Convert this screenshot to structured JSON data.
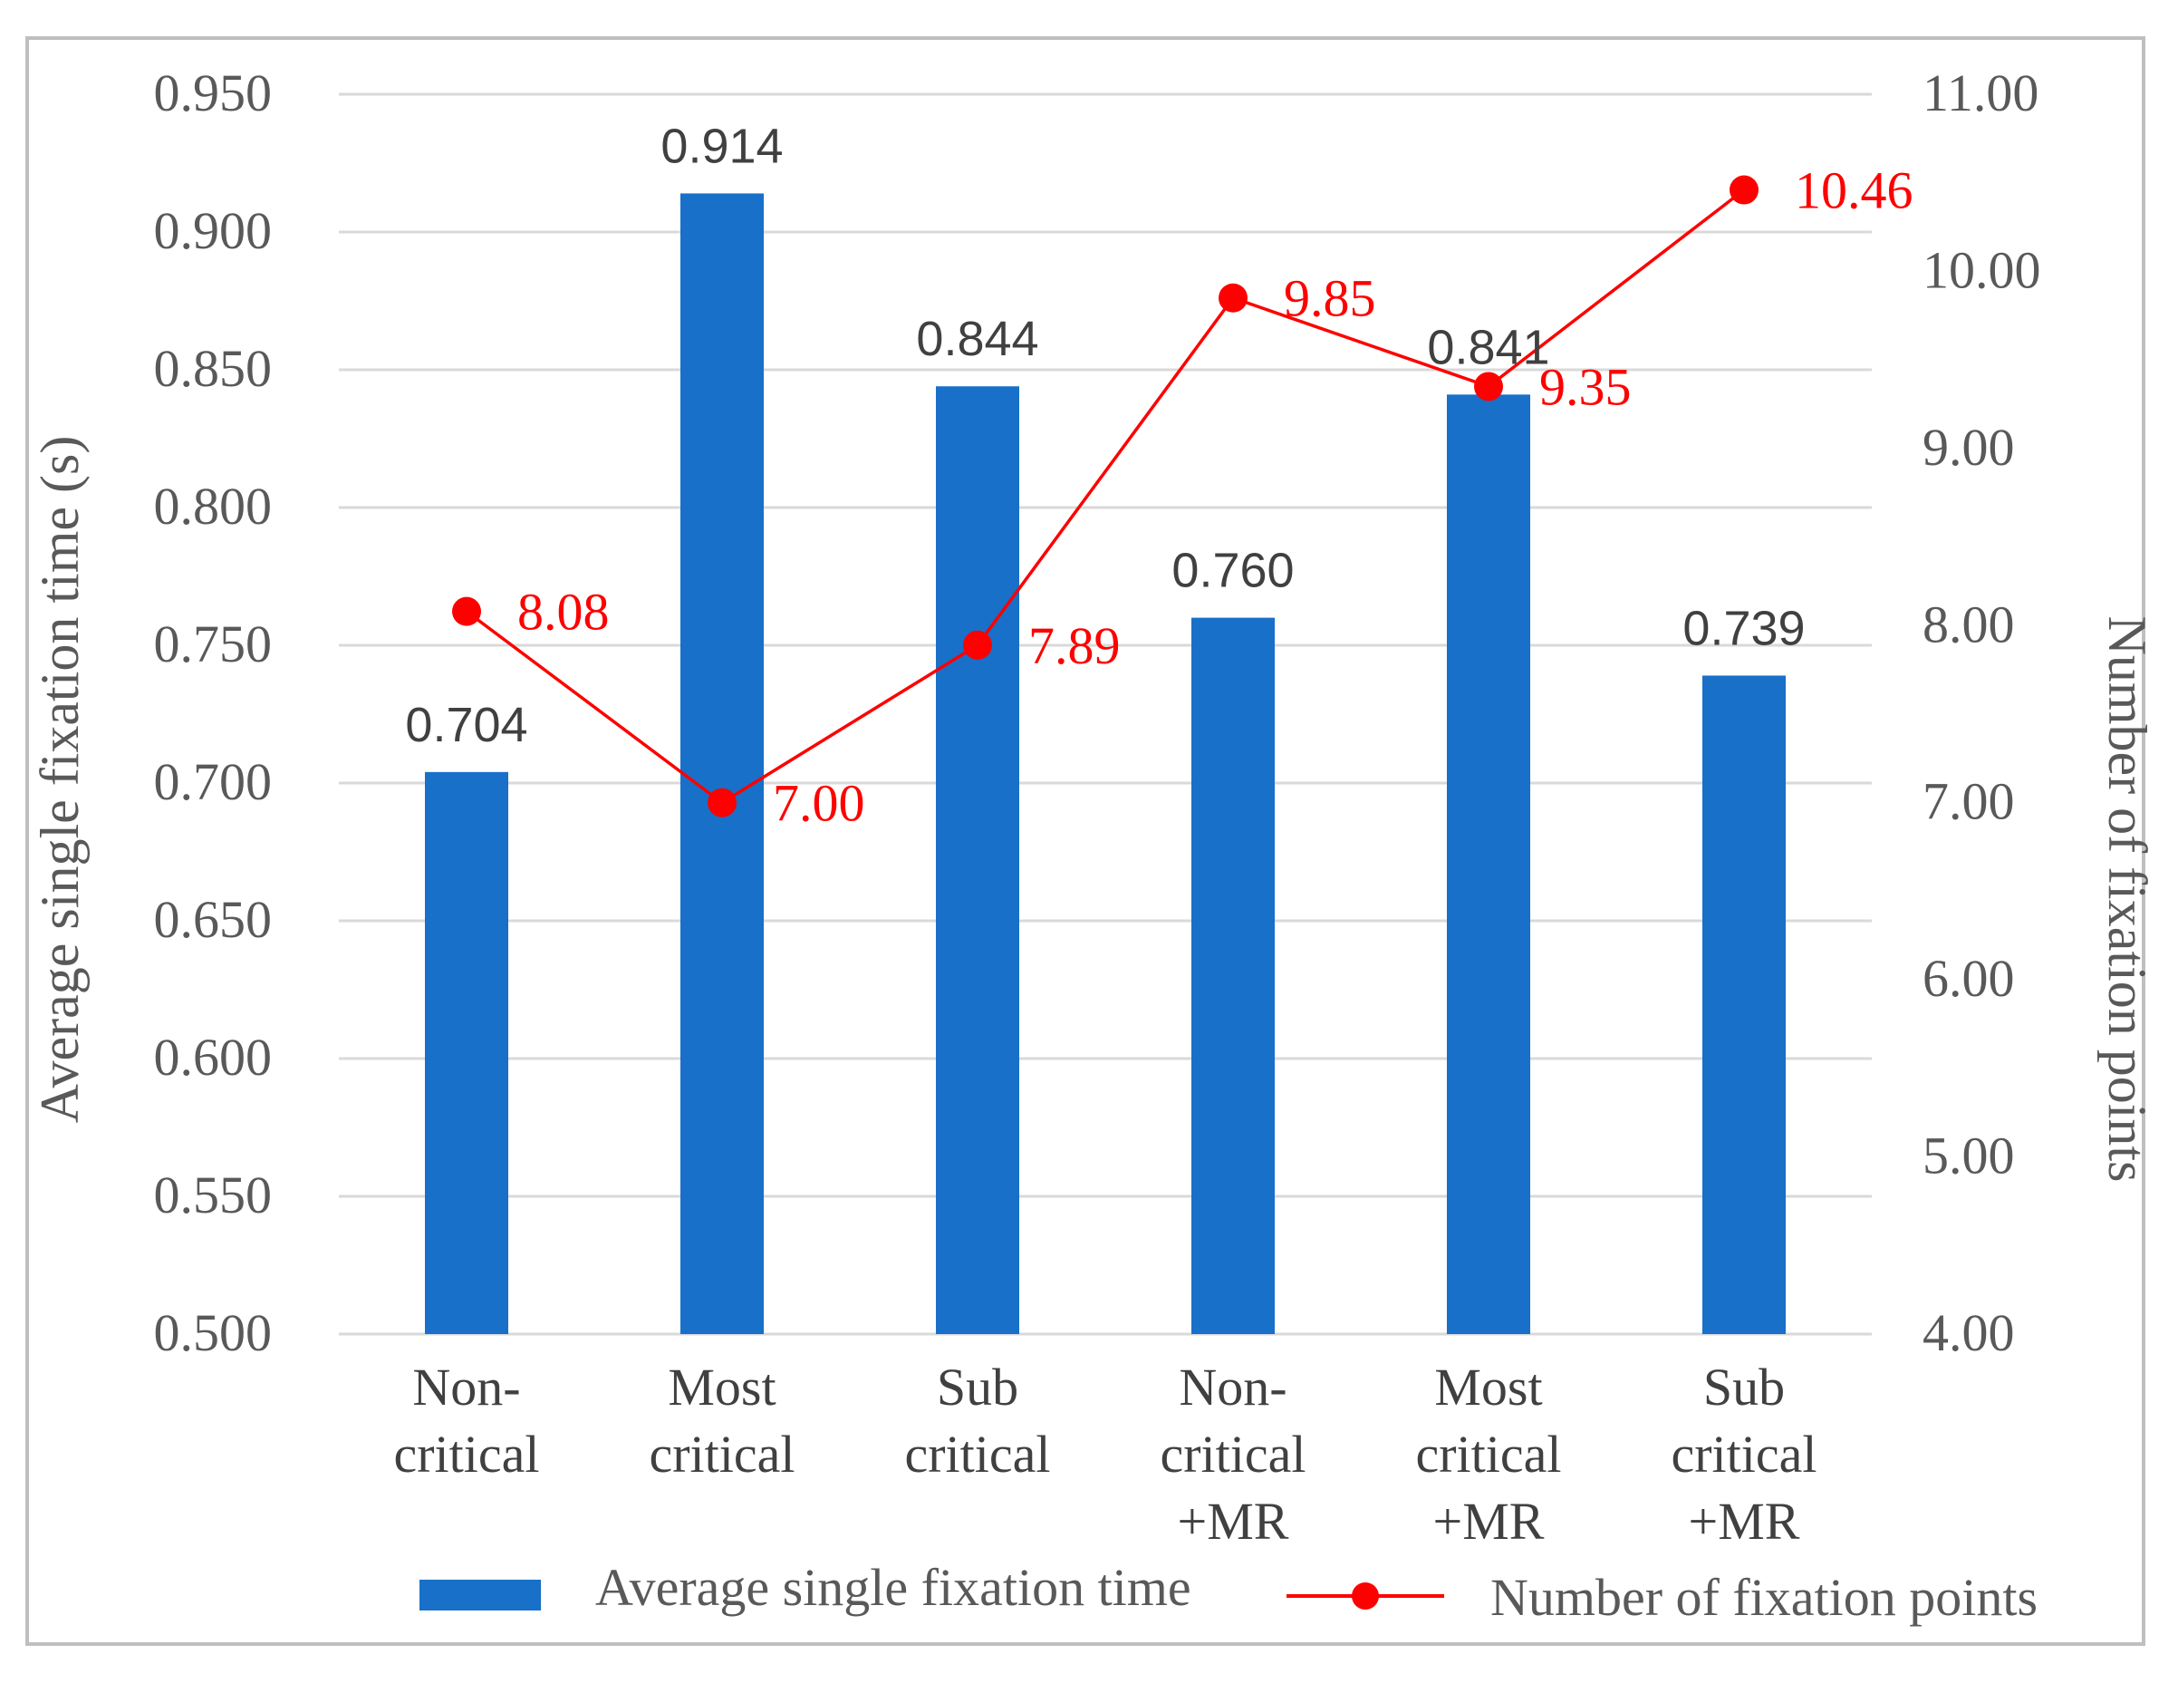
{
  "chart_data": {
    "type": "bar+line",
    "categories": [
      [
        "Non-",
        "critical"
      ],
      [
        "Most",
        "critical"
      ],
      [
        "Sub",
        "critical"
      ],
      [
        "Non-",
        "critical",
        "+MR"
      ],
      [
        "Most",
        "critical",
        "+MR"
      ],
      [
        "Sub",
        "critical",
        "+MR"
      ]
    ],
    "series": [
      {
        "name": "Average single fixation time",
        "type": "bar",
        "axis": "left",
        "color": "#1870c9",
        "values": [
          0.704,
          0.914,
          0.844,
          0.76,
          0.841,
          0.739
        ],
        "labels": [
          "0.704",
          "0.914",
          "0.844",
          "0.760",
          "0.841",
          "0.739"
        ]
      },
      {
        "name": "Number of fixation points",
        "type": "line",
        "axis": "right",
        "color": "#ff0000",
        "values": [
          8.08,
          7.0,
          7.89,
          9.85,
          9.35,
          10.46
        ],
        "labels": [
          "8.08",
          "7.00",
          "7.89",
          "9.85",
          "9.35",
          "10.46"
        ]
      }
    ],
    "y_left": {
      "label": "Average single fixation time (s)",
      "lim": [
        0.5,
        0.95
      ],
      "ticks": [
        "0.500",
        "0.550",
        "0.600",
        "0.650",
        "0.700",
        "0.750",
        "0.800",
        "0.850",
        "0.900",
        "0.950"
      ]
    },
    "y_right": {
      "label": "Number of fixation points",
      "lim": [
        4.0,
        11.0
      ],
      "ticks": [
        "4.00",
        "5.00",
        "6.00",
        "7.00",
        "8.00",
        "9.00",
        "10.00",
        "11.00"
      ]
    },
    "grid": true,
    "legend": "bottom",
    "gridColor": "#d9d9d9"
  }
}
